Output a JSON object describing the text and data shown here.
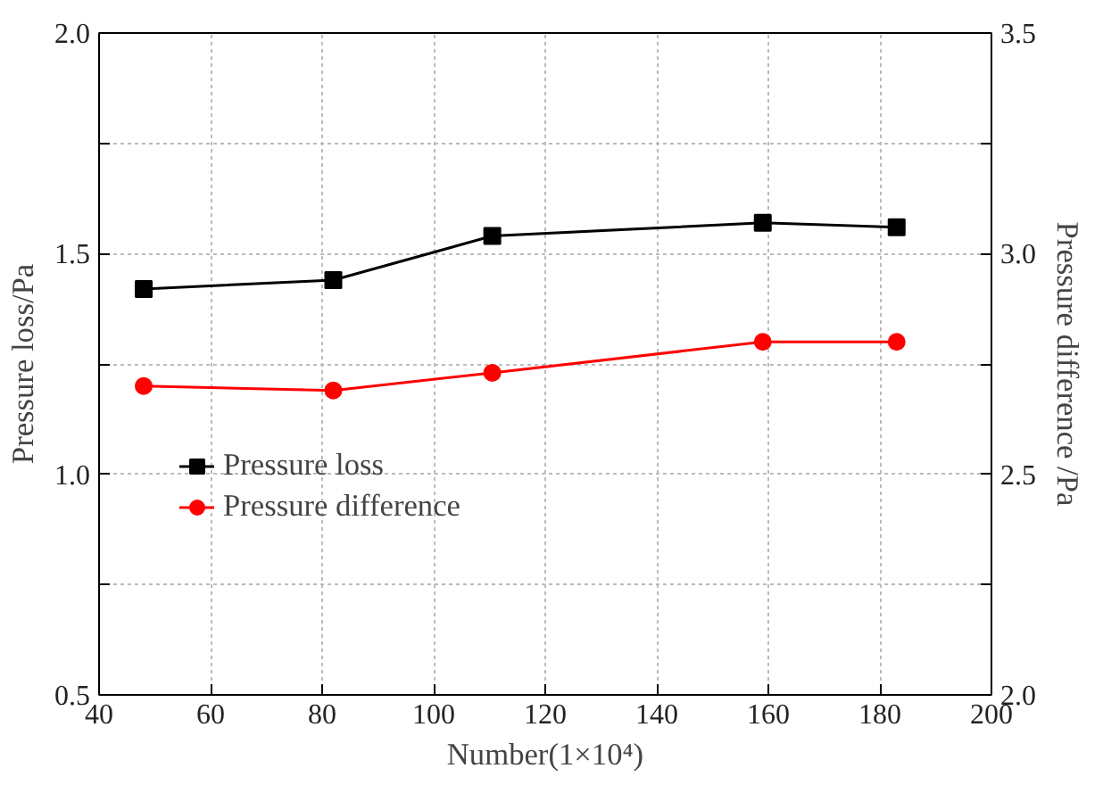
{
  "chart_data": {
    "type": "line",
    "xlabel": "Number(1×10⁴)",
    "ylabel": "Pressure loss/Pa",
    "y2label": "Pressure difference /Pa",
    "x": [
      48,
      82,
      110.5,
      159,
      183
    ],
    "series": [
      {
        "name": "Pressure loss",
        "color": "#000000",
        "marker": "square",
        "values": [
          1.42,
          1.44,
          1.54,
          1.57,
          1.56
        ]
      },
      {
        "name": "Pressure difference",
        "color": "#ff0000",
        "marker": "circle",
        "axis": "y2",
        "values": [
          2.7,
          2.69,
          2.73,
          2.8,
          2.8
        ]
      }
    ],
    "xlim": [
      40,
      200
    ],
    "xticks": [
      40,
      60,
      80,
      100,
      120,
      140,
      160,
      180,
      200
    ],
    "ylim": [
      0.5,
      2.0
    ],
    "yticks": [
      {
        "value": 0.5,
        "label": "0.5"
      },
      {
        "value": 0.75,
        "label": null
      },
      {
        "value": 1.0,
        "label": "1.0"
      },
      {
        "value": 1.25,
        "label": null
      },
      {
        "value": 1.5,
        "label": "1.5"
      },
      {
        "value": 1.75,
        "label": null
      },
      {
        "value": 2.0,
        "label": "2.0"
      }
    ],
    "y2lim": [
      2.0,
      3.5
    ],
    "y2ticks": [
      {
        "value": 2.0,
        "label": "2.0"
      },
      {
        "value": 2.25,
        "label": null
      },
      {
        "value": 2.5,
        "label": "2.5"
      },
      {
        "value": 2.75,
        "label": null
      },
      {
        "value": 3.0,
        "label": "3.0"
      },
      {
        "value": 3.25,
        "label": null
      },
      {
        "value": 3.5,
        "label": "3.5"
      }
    ],
    "grid": true,
    "legend": "left",
    "line_style": "solid"
  }
}
